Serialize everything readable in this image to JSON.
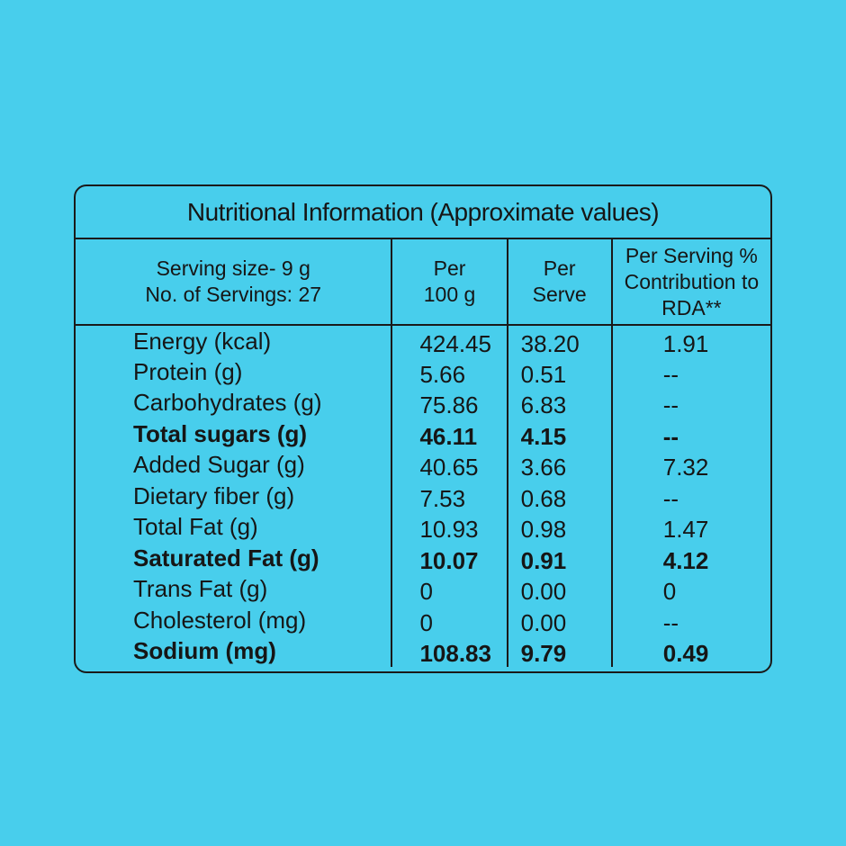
{
  "colors": {
    "background": "#48CEEC",
    "rule": "#1a1a1a",
    "text": "#161616"
  },
  "title": "Nutritional Information (Approximate values)",
  "header": {
    "columns": [
      {
        "name": "serving-info",
        "lines": [
          "Serving size- 9 g",
          "No. of Servings: 27"
        ]
      },
      {
        "name": "per-100g",
        "lines": [
          "Per",
          "100 g"
        ]
      },
      {
        "name": "per-serve",
        "lines": [
          "Per",
          "Serve"
        ]
      },
      {
        "name": "rda-contribution",
        "lines": [
          "Per Serving %",
          "Contribution to",
          "RDA**"
        ]
      }
    ]
  },
  "rows": [
    {
      "label": "Energy (kcal)",
      "per_100g": "424.45",
      "per_serve": "38.20",
      "rda_percent": "1.91",
      "bold": false
    },
    {
      "label": "Protein (g)",
      "per_100g": "5.66",
      "per_serve": "0.51",
      "rda_percent": "--",
      "bold": false
    },
    {
      "label": "Carbohydrates (g)",
      "per_100g": "75.86",
      "per_serve": "6.83",
      "rda_percent": "--",
      "bold": false
    },
    {
      "label": "Total sugars (g)",
      "per_100g": "46.11",
      "per_serve": "4.15",
      "rda_percent": "--",
      "bold": true
    },
    {
      "label": "Added Sugar (g)",
      "per_100g": "40.65",
      "per_serve": "3.66",
      "rda_percent": "7.32",
      "bold": false
    },
    {
      "label": "Dietary fiber (g)",
      "per_100g": "7.53",
      "per_serve": "0.68",
      "rda_percent": "--",
      "bold": false
    },
    {
      "label": "Total Fat (g)",
      "per_100g": "10.93",
      "per_serve": "0.98",
      "rda_percent": "1.47",
      "bold": false
    },
    {
      "label": "Saturated Fat (g)",
      "per_100g": "10.07",
      "per_serve": "0.91",
      "rda_percent": "4.12",
      "bold": true
    },
    {
      "label": "Trans Fat (g)",
      "per_100g": "0",
      "per_serve": "0.00",
      "rda_percent": "0",
      "bold": false
    },
    {
      "label": "Cholesterol (mg)",
      "per_100g": "0",
      "per_serve": "0.00",
      "rda_percent": "--",
      "bold": false
    },
    {
      "label": "Sodium (mg)",
      "per_100g": "108.83",
      "per_serve": "9.79",
      "rda_percent": "0.49",
      "bold": true
    }
  ]
}
